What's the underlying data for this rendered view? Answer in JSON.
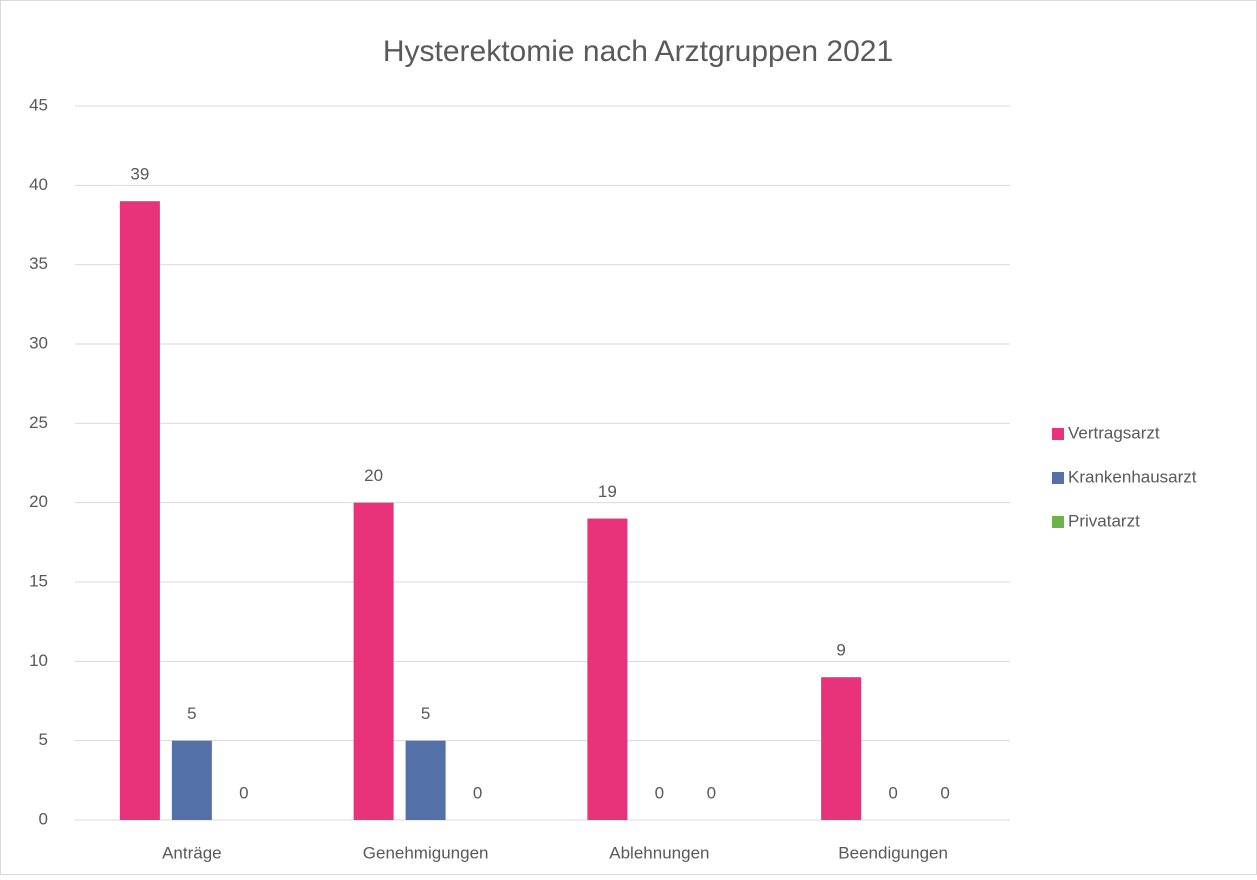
{
  "chart_data": {
    "type": "bar",
    "title": "Hysterektomie nach Arztgruppen 2021",
    "categories": [
      "Anträge",
      "Genehmigungen",
      "Ablehnungen",
      "Beendigungen"
    ],
    "series": [
      {
        "name": "Vertragsarzt",
        "color": "#e8337a",
        "values": [
          39,
          20,
          19,
          9
        ]
      },
      {
        "name": "Krankenhausarzt",
        "color": "#5470a9",
        "values": [
          5,
          5,
          0,
          0
        ]
      },
      {
        "name": "Privatarzt",
        "color": "#6bb445",
        "values": [
          0,
          0,
          0,
          0
        ]
      }
    ],
    "ylim": [
      0,
      45
    ],
    "yticks": [
      0,
      5,
      10,
      15,
      20,
      25,
      30,
      35,
      40,
      45
    ],
    "grid": true,
    "legend": "right"
  }
}
